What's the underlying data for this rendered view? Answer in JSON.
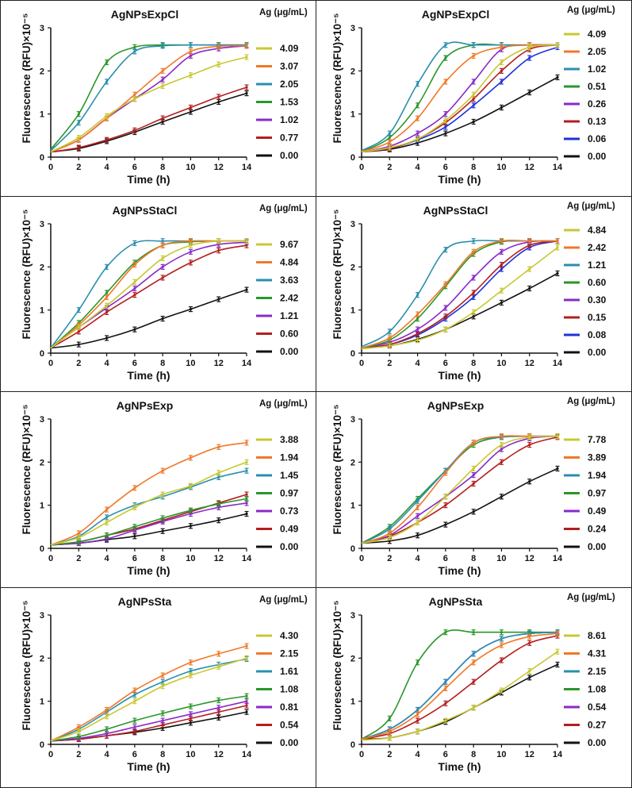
{
  "chart_data": [
    {
      "type": "line",
      "title": "AgNPsExpCl",
      "xlabel": "Time (h)",
      "ylabel": "Fluorescence (RFU)×10⁻⁵",
      "legend_title": "Ag (μg/mL)",
      "legend": "right",
      "xlim": [
        0,
        14
      ],
      "ylim": [
        0,
        3
      ],
      "xticks": [
        "0",
        "2",
        "4",
        "6",
        "8",
        "10",
        "12",
        "14"
      ],
      "yticks": [
        "0",
        "1",
        "2",
        "3"
      ],
      "x": [
        0,
        2,
        4,
        6,
        8,
        10,
        12,
        14
      ],
      "series": [
        {
          "name": "4.09",
          "color": "#c8c832",
          "values": [
            0.12,
            0.45,
            0.95,
            1.35,
            1.65,
            1.9,
            2.15,
            2.32
          ]
        },
        {
          "name": "3.07",
          "color": "#f07828",
          "values": [
            0.12,
            0.4,
            0.9,
            1.45,
            2.0,
            2.45,
            2.57,
            2.58
          ]
        },
        {
          "name": "2.05",
          "color": "#2a8fae",
          "values": [
            0.15,
            0.8,
            1.75,
            2.45,
            2.58,
            2.6,
            2.6,
            2.6
          ]
        },
        {
          "name": "1.53",
          "color": "#2a962a",
          "values": [
            0.18,
            1.0,
            2.2,
            2.55,
            2.6,
            2.6,
            2.6,
            2.6
          ]
        },
        {
          "name": "1.02",
          "color": "#8a2ac8",
          "values": [
            0.12,
            0.4,
            0.9,
            1.35,
            1.8,
            2.35,
            2.52,
            2.58
          ]
        },
        {
          "name": "0.77",
          "color": "#b41e1e",
          "values": [
            0.12,
            0.22,
            0.4,
            0.62,
            0.9,
            1.15,
            1.4,
            1.62
          ]
        },
        {
          "name": "0.00",
          "color": "#111111",
          "values": [
            0.12,
            0.2,
            0.37,
            0.58,
            0.82,
            1.05,
            1.28,
            1.48
          ]
        }
      ]
    },
    {
      "type": "line",
      "title": "AgNPsExpCl",
      "xlabel": "Time (h)",
      "ylabel": "Fluorescence (RFU)×10⁻⁵",
      "legend_title": "Ag (μg/mL)",
      "legend": "right",
      "xlim": [
        0,
        14
      ],
      "ylim": [
        0,
        3
      ],
      "xticks": [
        "0",
        "2",
        "4",
        "6",
        "8",
        "10",
        "12",
        "14"
      ],
      "yticks": [
        "0",
        "1",
        "2",
        "3"
      ],
      "x": [
        0,
        2,
        4,
        6,
        8,
        10,
        12,
        14
      ],
      "series": [
        {
          "name": "4.09",
          "color": "#c8c832",
          "values": [
            0.12,
            0.22,
            0.42,
            0.85,
            1.45,
            2.2,
            2.55,
            2.6
          ]
        },
        {
          "name": "2.05",
          "color": "#f07828",
          "values": [
            0.13,
            0.35,
            0.9,
            1.75,
            2.35,
            2.55,
            2.6,
            2.6
          ]
        },
        {
          "name": "1.02",
          "color": "#2a8fae",
          "values": [
            0.15,
            0.55,
            1.7,
            2.6,
            2.6,
            2.6,
            2.6,
            2.6
          ]
        },
        {
          "name": "0.51",
          "color": "#2a962a",
          "values": [
            0.13,
            0.45,
            1.2,
            2.3,
            2.6,
            2.6,
            2.6,
            2.6
          ]
        },
        {
          "name": "0.26",
          "color": "#8a2ac8",
          "values": [
            0.12,
            0.25,
            0.55,
            1.0,
            1.75,
            2.5,
            2.6,
            2.6
          ]
        },
        {
          "name": "0.13",
          "color": "#b41e1e",
          "values": [
            0.12,
            0.2,
            0.42,
            0.8,
            1.35,
            2.0,
            2.5,
            2.6
          ]
        },
        {
          "name": "0.06",
          "color": "#1e32dc",
          "values": [
            0.12,
            0.2,
            0.4,
            0.7,
            1.2,
            1.75,
            2.3,
            2.55
          ]
        },
        {
          "name": "0.00",
          "color": "#111111",
          "values": [
            0.12,
            0.18,
            0.33,
            0.55,
            0.82,
            1.15,
            1.5,
            1.85
          ]
        }
      ]
    },
    {
      "type": "line",
      "title": "AgNPsStaCl",
      "xlabel": "Time (h)",
      "ylabel": "Fluorescence (RFU)×10⁻⁵",
      "legend_title": "Ag (μg/mL)",
      "legend": "right",
      "xlim": [
        0,
        14
      ],
      "ylim": [
        0,
        3
      ],
      "xticks": [
        "0",
        "2",
        "4",
        "6",
        "8",
        "10",
        "12",
        "14"
      ],
      "yticks": [
        "0",
        "1",
        "2",
        "3"
      ],
      "x": [
        0,
        2,
        4,
        6,
        8,
        10,
        12,
        14
      ],
      "series": [
        {
          "name": "9.67",
          "color": "#c8c832",
          "values": [
            0.12,
            0.6,
            1.1,
            1.65,
            2.2,
            2.5,
            2.6,
            2.6
          ]
        },
        {
          "name": "4.84",
          "color": "#f07828",
          "values": [
            0.12,
            0.65,
            1.3,
            2.05,
            2.5,
            2.6,
            2.6,
            2.6
          ]
        },
        {
          "name": "3.63",
          "color": "#2a8fae",
          "values": [
            0.12,
            1.0,
            2.0,
            2.55,
            2.6,
            2.6,
            2.6,
            2.6
          ]
        },
        {
          "name": "2.42",
          "color": "#2a962a",
          "values": [
            0.12,
            0.7,
            1.4,
            2.1,
            2.5,
            2.58,
            2.6,
            2.6
          ]
        },
        {
          "name": "1.21",
          "color": "#8a2ac8",
          "values": [
            0.12,
            0.6,
            1.05,
            1.5,
            2.0,
            2.35,
            2.52,
            2.57
          ]
        },
        {
          "name": "0.60",
          "color": "#b41e1e",
          "values": [
            0.12,
            0.5,
            0.95,
            1.35,
            1.75,
            2.1,
            2.38,
            2.5
          ]
        },
        {
          "name": "0.00",
          "color": "#111111",
          "values": [
            0.12,
            0.2,
            0.35,
            0.55,
            0.8,
            1.02,
            1.25,
            1.47
          ]
        }
      ]
    },
    {
      "type": "line",
      "title": "AgNPsStaCl",
      "xlabel": "Time (h)",
      "ylabel": "Fluorescence (RFU)×10⁻⁵",
      "legend_title": "Ag (μg/mL)",
      "legend": "right",
      "xlim": [
        0,
        14
      ],
      "ylim": [
        0,
        3
      ],
      "xticks": [
        "0",
        "2",
        "4",
        "6",
        "8",
        "10",
        "12",
        "14"
      ],
      "yticks": [
        "0",
        "1",
        "2",
        "3"
      ],
      "x": [
        0,
        2,
        4,
        6,
        8,
        10,
        12,
        14
      ],
      "series": [
        {
          "name": "4.84",
          "color": "#c8c832",
          "values": [
            0.1,
            0.17,
            0.3,
            0.55,
            0.95,
            1.45,
            1.95,
            2.45
          ]
        },
        {
          "name": "2.42",
          "color": "#f07828",
          "values": [
            0.12,
            0.35,
            0.9,
            1.6,
            2.35,
            2.6,
            2.6,
            2.6
          ]
        },
        {
          "name": "1.21",
          "color": "#2a8fae",
          "values": [
            0.15,
            0.5,
            1.35,
            2.4,
            2.6,
            2.6,
            2.6,
            2.6
          ]
        },
        {
          "name": "0.60",
          "color": "#2a962a",
          "values": [
            0.12,
            0.3,
            0.8,
            1.55,
            2.3,
            2.58,
            2.6,
            2.6
          ]
        },
        {
          "name": "0.30",
          "color": "#8a2ac8",
          "values": [
            0.12,
            0.25,
            0.55,
            1.05,
            1.75,
            2.35,
            2.58,
            2.6
          ]
        },
        {
          "name": "0.15",
          "color": "#b41e1e",
          "values": [
            0.12,
            0.2,
            0.45,
            0.85,
            1.4,
            2.05,
            2.5,
            2.6
          ]
        },
        {
          "name": "0.08",
          "color": "#1e32dc",
          "values": [
            0.12,
            0.2,
            0.42,
            0.8,
            1.3,
            1.95,
            2.45,
            2.6
          ]
        },
        {
          "name": "0.00",
          "color": "#111111",
          "values": [
            0.12,
            0.17,
            0.32,
            0.55,
            0.85,
            1.17,
            1.5,
            1.85
          ]
        }
      ]
    },
    {
      "type": "line",
      "title": "AgNPsExp",
      "xlabel": "Time (h)",
      "ylabel": "Fluorescence (RFU)×10⁻⁵",
      "legend_title": "Ag (μg/mL)",
      "legend": "right",
      "xlim": [
        0,
        14
      ],
      "ylim": [
        0,
        3
      ],
      "xticks": [
        "0",
        "2",
        "4",
        "6",
        "8",
        "10",
        "12",
        "14"
      ],
      "yticks": [
        "0",
        "1",
        "2",
        "3"
      ],
      "x": [
        0,
        2,
        4,
        6,
        8,
        10,
        12,
        14
      ],
      "series": [
        {
          "name": "3.88",
          "color": "#c8c832",
          "values": [
            0.08,
            0.25,
            0.6,
            0.95,
            1.25,
            1.45,
            1.75,
            2.0
          ]
        },
        {
          "name": "1.94",
          "color": "#f07828",
          "values": [
            0.08,
            0.35,
            0.9,
            1.4,
            1.8,
            2.1,
            2.35,
            2.45
          ]
        },
        {
          "name": "1.45",
          "color": "#2a8fae",
          "values": [
            0.08,
            0.28,
            0.72,
            1.0,
            1.2,
            1.42,
            1.65,
            1.8
          ]
        },
        {
          "name": "0.97",
          "color": "#2a962a",
          "values": [
            0.08,
            0.15,
            0.3,
            0.5,
            0.7,
            0.88,
            1.03,
            1.15
          ]
        },
        {
          "name": "0.73",
          "color": "#8a2ac8",
          "values": [
            0.08,
            0.12,
            0.22,
            0.42,
            0.62,
            0.8,
            0.95,
            1.05
          ]
        },
        {
          "name": "0.49",
          "color": "#b41e1e",
          "values": [
            0.08,
            0.15,
            0.3,
            0.45,
            0.65,
            0.85,
            1.05,
            1.25
          ]
        },
        {
          "name": "0.00",
          "color": "#111111",
          "values": [
            0.08,
            0.12,
            0.2,
            0.28,
            0.4,
            0.52,
            0.65,
            0.8
          ]
        }
      ]
    },
    {
      "type": "line",
      "title": "AgNPsExp",
      "xlabel": "Time (h)",
      "ylabel": "Fluorescence (RFU)×10⁻⁵",
      "legend_title": "Ag (μg/mL)",
      "legend": "right",
      "xlim": [
        0,
        14
      ],
      "ylim": [
        0,
        3
      ],
      "xticks": [
        "0",
        "2",
        "4",
        "6",
        "8",
        "10",
        "12",
        "14"
      ],
      "yticks": [
        "0",
        "1",
        "2",
        "3"
      ],
      "x": [
        0,
        2,
        4,
        6,
        8,
        10,
        12,
        14
      ],
      "series": [
        {
          "name": "7.78",
          "color": "#c8c832",
          "values": [
            0.12,
            0.25,
            0.6,
            1.2,
            1.85,
            2.4,
            2.58,
            2.6
          ]
        },
        {
          "name": "3.89",
          "color": "#f07828",
          "values": [
            0.12,
            0.35,
            0.95,
            1.75,
            2.45,
            2.6,
            2.6,
            2.6
          ]
        },
        {
          "name": "1.94",
          "color": "#2a8fae",
          "values": [
            0.12,
            0.45,
            1.1,
            1.8,
            2.45,
            2.58,
            2.6,
            2.6
          ]
        },
        {
          "name": "0.97",
          "color": "#2a962a",
          "values": [
            0.12,
            0.5,
            1.15,
            1.8,
            2.4,
            2.58,
            2.6,
            2.6
          ]
        },
        {
          "name": "0.49",
          "color": "#8a2ac8",
          "values": [
            0.12,
            0.3,
            0.75,
            1.2,
            1.7,
            2.3,
            2.55,
            2.6
          ]
        },
        {
          "name": "0.24",
          "color": "#b41e1e",
          "values": [
            0.12,
            0.28,
            0.6,
            1.0,
            1.5,
            2.0,
            2.4,
            2.58
          ]
        },
        {
          "name": "0.00",
          "color": "#111111",
          "values": [
            0.12,
            0.17,
            0.3,
            0.55,
            0.85,
            1.2,
            1.55,
            1.85
          ]
        }
      ]
    },
    {
      "type": "line",
      "title": "AgNPsSta",
      "xlabel": "Time (h)",
      "ylabel": "Fluorescence (RFU)×10⁻⁵",
      "legend_title": "Ag (μg/mL)",
      "legend": "right",
      "xlim": [
        0,
        14
      ],
      "ylim": [
        0,
        3
      ],
      "xticks": [
        "0",
        "2",
        "4",
        "6",
        "8",
        "10",
        "12",
        "14"
      ],
      "yticks": [
        "0",
        "1",
        "2",
        "3"
      ],
      "x": [
        0,
        2,
        4,
        6,
        8,
        10,
        12,
        14
      ],
      "series": [
        {
          "name": "4.30",
          "color": "#c8c832",
          "values": [
            0.08,
            0.3,
            0.65,
            1.0,
            1.35,
            1.6,
            1.8,
            2.0
          ]
        },
        {
          "name": "2.15",
          "color": "#f07828",
          "values": [
            0.08,
            0.4,
            0.8,
            1.25,
            1.6,
            1.9,
            2.1,
            2.28
          ]
        },
        {
          "name": "1.61",
          "color": "#2a8fae",
          "values": [
            0.08,
            0.35,
            0.75,
            1.15,
            1.45,
            1.7,
            1.85,
            1.98
          ]
        },
        {
          "name": "1.08",
          "color": "#2a962a",
          "values": [
            0.08,
            0.18,
            0.35,
            0.55,
            0.72,
            0.88,
            1.02,
            1.12
          ]
        },
        {
          "name": "0.81",
          "color": "#8a2ac8",
          "values": [
            0.08,
            0.14,
            0.25,
            0.4,
            0.55,
            0.7,
            0.85,
            1.0
          ]
        },
        {
          "name": "0.54",
          "color": "#b41e1e",
          "values": [
            0.08,
            0.12,
            0.2,
            0.3,
            0.45,
            0.6,
            0.75,
            0.9
          ]
        },
        {
          "name": "0.00",
          "color": "#111111",
          "values": [
            0.08,
            0.12,
            0.2,
            0.28,
            0.38,
            0.5,
            0.62,
            0.75
          ]
        }
      ]
    },
    {
      "type": "line",
      "title": "AgNPsSta",
      "xlabel": "Time (h)",
      "ylabel": "Fluorescence (RFU)×10⁻⁵",
      "legend_title": "Ag (μg/mL)",
      "legend": "right",
      "xlim": [
        0,
        14
      ],
      "ylim": [
        0,
        3
      ],
      "xticks": [
        "0",
        "2",
        "4",
        "6",
        "8",
        "10",
        "12",
        "14"
      ],
      "yticks": [
        "0",
        "1",
        "2",
        "3"
      ],
      "x": [
        0,
        2,
        4,
        6,
        8,
        10,
        12,
        14
      ],
      "series": [
        {
          "name": "8.61",
          "color": "#c8c832",
          "values": [
            0.1,
            0.15,
            0.3,
            0.55,
            0.85,
            1.25,
            1.7,
            2.15
          ]
        },
        {
          "name": "4.31",
          "color": "#f07828",
          "values": [
            0.12,
            0.3,
            0.7,
            1.3,
            1.9,
            2.3,
            2.5,
            2.57
          ]
        },
        {
          "name": "2.15",
          "color": "#2a8fae",
          "values": [
            0.12,
            0.35,
            0.8,
            1.45,
            2.1,
            2.45,
            2.57,
            2.6
          ]
        },
        {
          "name": "1.08",
          "color": "#2a962a",
          "values": [
            0.12,
            0.6,
            1.9,
            2.6,
            2.6,
            2.6,
            2.6,
            2.6
          ]
        },
        {
          "name": "0.54",
          "color": "#8a2ac8",
          "values": [
            0.12,
            0.35,
            0.8,
            1.45,
            2.1,
            2.45,
            2.57,
            2.6
          ]
        },
        {
          "name": "0.27",
          "color": "#b41e1e",
          "values": [
            0.12,
            0.25,
            0.55,
            0.95,
            1.45,
            1.95,
            2.35,
            2.52
          ]
        },
        {
          "name": "0.00",
          "color": "#111111",
          "values": [
            0.12,
            0.15,
            0.3,
            0.52,
            0.85,
            1.2,
            1.55,
            1.85
          ]
        }
      ]
    }
  ]
}
